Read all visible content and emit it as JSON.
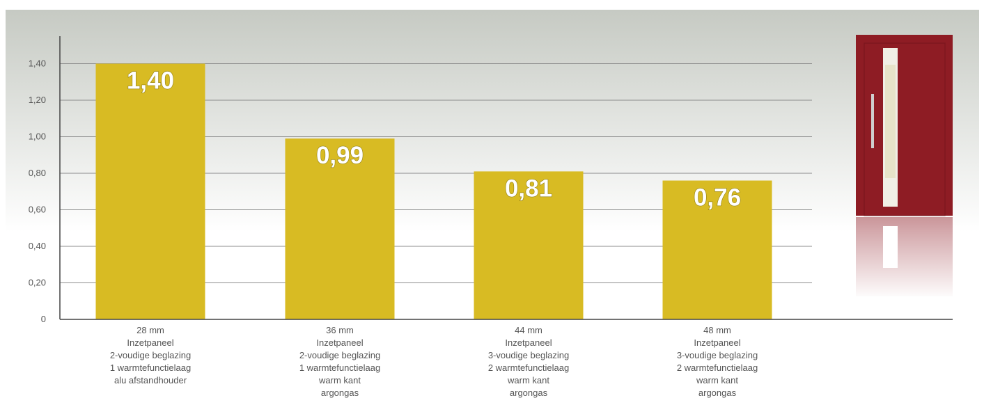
{
  "colors": {
    "bar": "#d8bb23",
    "gridline": "#8c8c8c",
    "axis": "#444444",
    "text": "#555555",
    "door": "#8e1c24",
    "background_top": "#c6cac3",
    "background_bottom": "#ffffff"
  },
  "illustration": {
    "icon": "red-front-door-with-glass-strip-icon"
  },
  "chart_data": {
    "type": "bar",
    "title": "",
    "xlabel": "",
    "ylabel": "",
    "ylim": [
      0,
      1.5
    ],
    "yticks": [
      "0",
      "0,20",
      "0,40",
      "0,60",
      "0,80",
      "1,00",
      "1,20",
      "1,40"
    ],
    "ytick_values": [
      0,
      0.2,
      0.4,
      0.6,
      0.8,
      1.0,
      1.2,
      1.4
    ],
    "grid": true,
    "legend": "none",
    "categories": [
      [
        "28 mm",
        "Inzetpaneel",
        "2-voudige beglazing",
        "1 warmtefunctielaag",
        "alu afstandhouder"
      ],
      [
        "36 mm",
        "Inzetpaneel",
        "2-voudige beglazing",
        "1 warmtefunctielaag",
        "warm kant",
        "argongas"
      ],
      [
        "44 mm",
        "Inzetpaneel",
        "3-voudige beglazing",
        "2 warmtefunctielaag",
        "warm kant",
        "argongas"
      ],
      [
        "48 mm",
        "Inzetpaneel",
        "3-voudige beglazing",
        "2 warmtefunctielaag",
        "warm kant",
        "argongas"
      ]
    ],
    "values": [
      1.4,
      0.99,
      0.81,
      0.76
    ],
    "value_labels": [
      "1,40",
      "0,99",
      "0,81",
      "0,76"
    ]
  }
}
